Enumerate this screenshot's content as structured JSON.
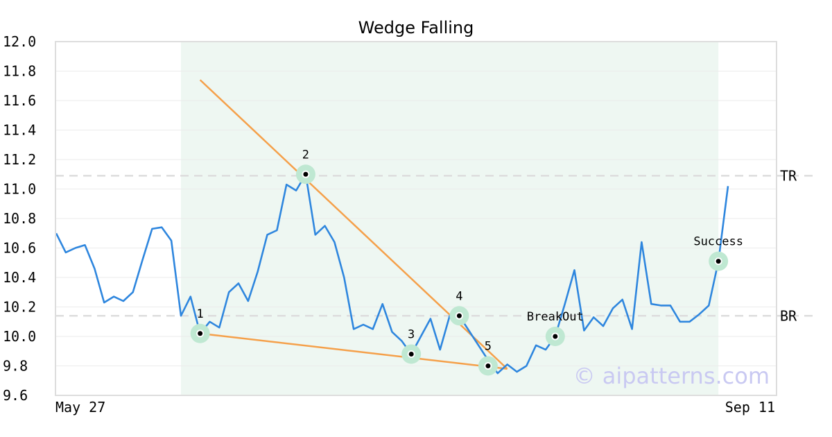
{
  "chart_data": {
    "type": "line",
    "title": "Wedge Falling",
    "watermark": "© aipatterns.com",
    "x_labels": {
      "start": "May 27",
      "end": "Sep 11"
    },
    "ylim": [
      9.6,
      12.0
    ],
    "yticks": [
      "12.0",
      "11.8",
      "11.6",
      "11.4",
      "11.2",
      "11.0",
      "10.8",
      "10.6",
      "10.4",
      "10.2",
      "10.0",
      "9.8",
      "9.6"
    ],
    "grid": true,
    "colors": {
      "price": "#2e86de",
      "trend": "#f5a04a",
      "zone": "#eef7f2",
      "marker_halo": "#bfe8d2",
      "level_line": "#dddddd"
    },
    "series": [
      {
        "values": [
          10.7,
          10.57,
          10.6,
          10.62,
          10.46,
          10.23,
          10.27,
          10.24,
          10.3,
          10.52,
          10.73,
          10.74,
          10.65,
          10.14,
          10.27,
          10.02,
          10.1,
          10.06,
          10.3,
          10.36,
          10.24,
          10.44,
          10.69,
          10.72,
          11.03,
          10.99,
          11.1,
          10.69,
          10.75,
          10.64,
          10.4,
          10.05,
          10.08,
          10.05,
          10.22,
          10.03,
          9.97,
          9.88,
          10.0,
          10.12,
          9.91,
          10.14,
          10.14,
          10.04,
          9.94,
          9.84,
          9.75,
          9.81,
          9.76,
          9.8,
          9.94,
          9.91,
          10.0,
          10.22,
          10.45,
          10.04,
          10.13,
          10.07,
          10.19,
          10.25,
          10.05,
          10.64,
          10.22,
          10.21,
          10.21,
          10.1,
          10.1,
          10.15,
          10.21,
          10.51,
          11.02
        ]
      }
    ],
    "pattern_zone": {
      "start_index": 13,
      "end_index": 69
    },
    "levels": [
      {
        "label": "TR",
        "value": 11.09
      },
      {
        "label": "BR",
        "value": 10.14
      }
    ],
    "trendlines": [
      {
        "from": {
          "index": 15,
          "value": 11.74
        },
        "to": {
          "index": 47,
          "value": 9.78
        }
      },
      {
        "from": {
          "index": 15,
          "value": 10.02
        },
        "to": {
          "index": 47,
          "value": 9.78
        }
      }
    ],
    "points": [
      {
        "label": "1",
        "index": 15,
        "value": 10.02
      },
      {
        "label": "2",
        "index": 26,
        "value": 11.1
      },
      {
        "label": "3",
        "index": 37,
        "value": 9.88
      },
      {
        "label": "4",
        "index": 42,
        "value": 10.14
      },
      {
        "label": "5",
        "index": 45,
        "value": 9.8
      },
      {
        "label": "BreakOut",
        "index": 52,
        "value": 10.0
      },
      {
        "label": "Success",
        "index": 69,
        "value": 10.51
      }
    ]
  }
}
